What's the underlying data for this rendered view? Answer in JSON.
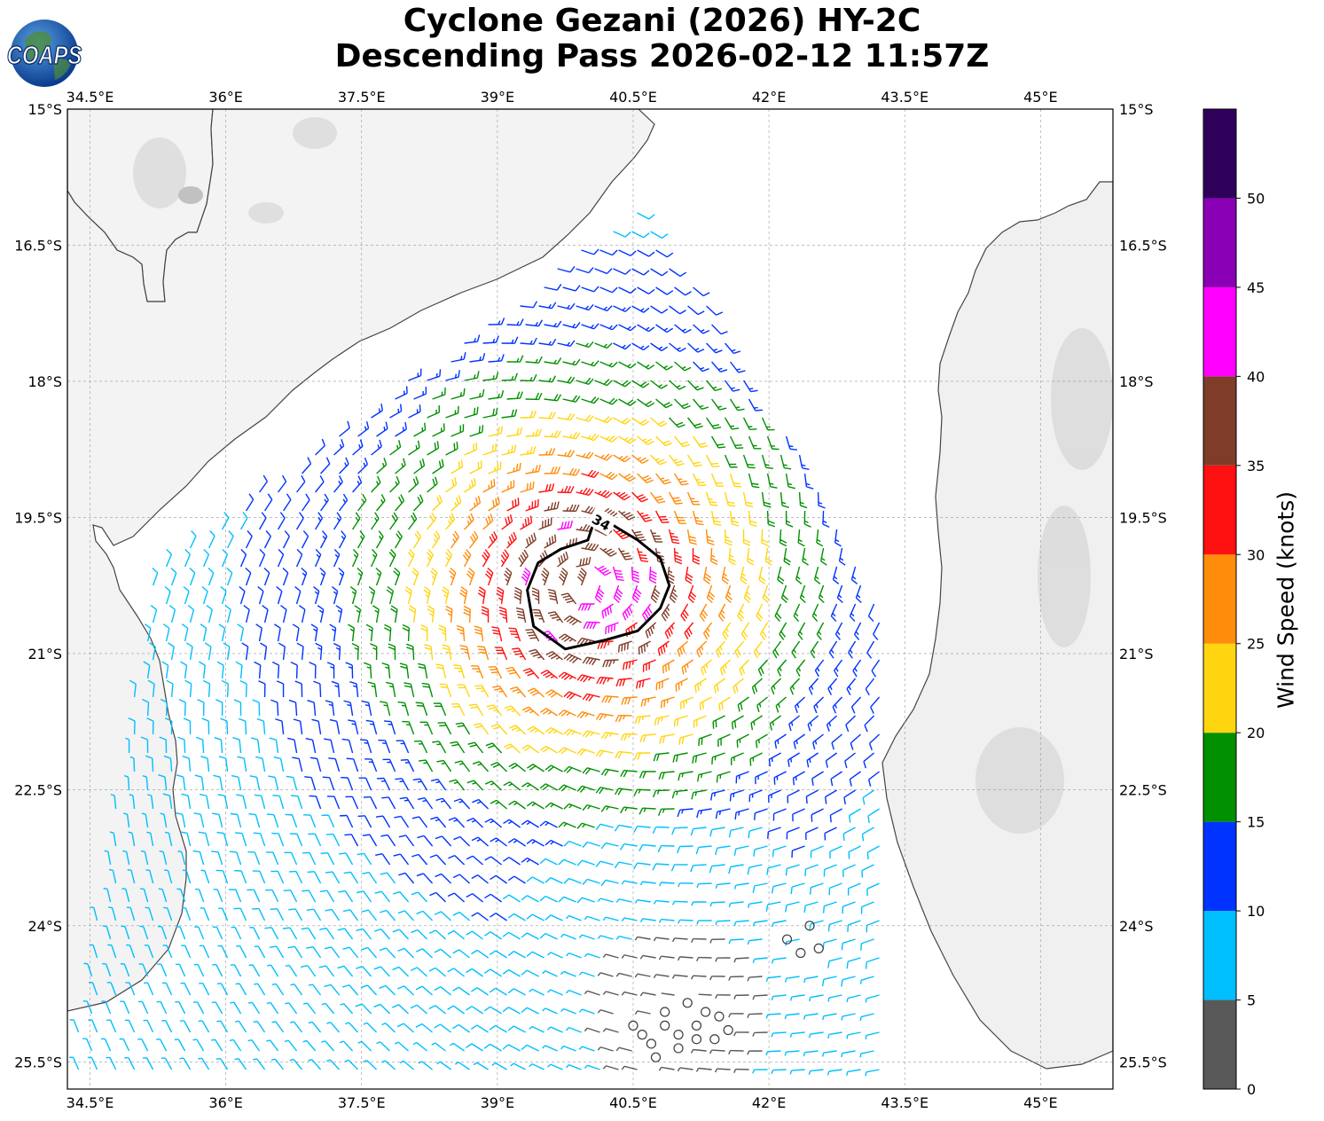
{
  "title": {
    "line1": "Cyclone Gezani (2026) HY-2C",
    "line2": "Descending Pass 2026-02-12 11:57Z"
  },
  "logo": {
    "text": "COAPS",
    "icon": "globe-icon"
  },
  "map": {
    "lon_range": [
      34.25,
      45.8
    ],
    "lat_range": [
      -25.8,
      -15
    ],
    "lon_ticks": [
      {
        "value": 34.5,
        "label": "34.5°E"
      },
      {
        "value": 36,
        "label": "36°E"
      },
      {
        "value": 37.5,
        "label": "37.5°E"
      },
      {
        "value": 39,
        "label": "39°E"
      },
      {
        "value": 40.5,
        "label": "40.5°E"
      },
      {
        "value": 42,
        "label": "42°E"
      },
      {
        "value": 43.5,
        "label": "43.5°E"
      },
      {
        "value": 45,
        "label": "45°E"
      }
    ],
    "lat_ticks": [
      {
        "value": -15,
        "label": "15°S"
      },
      {
        "value": -16.5,
        "label": "16.5°S"
      },
      {
        "value": -18,
        "label": "18°S"
      },
      {
        "value": -19.5,
        "label": "19.5°S"
      },
      {
        "value": -21,
        "label": "21°S"
      },
      {
        "value": -22.5,
        "label": "22.5°S"
      },
      {
        "value": -24,
        "label": "24°S"
      },
      {
        "value": -25.5,
        "label": "25.5°S"
      }
    ],
    "gridlines": true,
    "land_color": "#f4f4f4",
    "sea_color": "#ffffff",
    "coastline_color": "#444444",
    "cyclone_center": [
      40.0,
      -20.25
    ],
    "contour_34kt": {
      "label": "34",
      "points": [
        [
          40.1,
          -19.45
        ],
        [
          40.0,
          -19.75
        ],
        [
          39.7,
          -19.85
        ],
        [
          39.45,
          -20.0
        ],
        [
          39.33,
          -20.3
        ],
        [
          39.4,
          -20.7
        ],
        [
          39.75,
          -20.95
        ],
        [
          40.2,
          -20.85
        ],
        [
          40.55,
          -20.75
        ],
        [
          40.8,
          -20.5
        ],
        [
          40.9,
          -20.25
        ],
        [
          40.8,
          -19.95
        ],
        [
          40.55,
          -19.75
        ],
        [
          40.3,
          -19.6
        ]
      ]
    },
    "wind_barbs": {
      "units": "knots",
      "swath": {
        "description_points": [
          [
            40.6,
            -16.1
          ],
          [
            41.55,
            -17.5
          ],
          [
            42.65,
            -19.3
          ],
          [
            43.55,
            -21.2
          ],
          [
            43.5,
            -22.9
          ],
          [
            44.05,
            -24.3
          ],
          [
            44.3,
            -25.8
          ],
          [
            34.3,
            -25.8
          ],
          [
            34.3,
            -25.5
          ],
          [
            35.2,
            -20.1
          ],
          [
            37.2,
            -18.6
          ],
          [
            39.0,
            -17.25
          ],
          [
            40.2,
            -16.3
          ]
        ]
      },
      "calm_circles": [
        [
          40.5,
          -25.1
        ],
        [
          40.6,
          -25.2
        ],
        [
          40.7,
          -25.3
        ],
        [
          40.75,
          -25.45
        ],
        [
          40.85,
          -24.95
        ],
        [
          40.85,
          -25.1
        ],
        [
          41.0,
          -25.2
        ],
        [
          41.0,
          -25.35
        ],
        [
          41.1,
          -24.85
        ],
        [
          41.2,
          -25.1
        ],
        [
          41.2,
          -25.25
        ],
        [
          41.3,
          -24.95
        ],
        [
          41.4,
          -25.25
        ],
        [
          41.45,
          -25.0
        ],
        [
          41.55,
          -25.15
        ],
        [
          42.2,
          -24.15
        ],
        [
          42.35,
          -24.3
        ],
        [
          42.45,
          -24.0
        ],
        [
          42.55,
          -24.25
        ]
      ]
    }
  },
  "colorbar": {
    "label": "Wind Speed (knots)",
    "min": 0,
    "max": 55,
    "bins": [
      {
        "from": 0,
        "to": 5,
        "color": "#595959"
      },
      {
        "from": 5,
        "to": 10,
        "color": "#00bfff"
      },
      {
        "from": 10,
        "to": 15,
        "color": "#0033ff"
      },
      {
        "from": 15,
        "to": 20,
        "color": "#009000"
      },
      {
        "from": 20,
        "to": 25,
        "color": "#ffd510"
      },
      {
        "from": 25,
        "to": 30,
        "color": "#ff8c0a"
      },
      {
        "from": 30,
        "to": 35,
        "color": "#ff1010"
      },
      {
        "from": 35,
        "to": 40,
        "color": "#7f3c28"
      },
      {
        "from": 40,
        "to": 45,
        "color": "#ff00ff"
      },
      {
        "from": 45,
        "to": 50,
        "color": "#8a00b4"
      },
      {
        "from": 50,
        "to": 55,
        "color": "#2f005a"
      }
    ],
    "tick_labels": [
      {
        "value": 0,
        "label": "0"
      },
      {
        "value": 5,
        "label": "5"
      },
      {
        "value": 10,
        "label": "10"
      },
      {
        "value": 15,
        "label": "15"
      },
      {
        "value": 20,
        "label": "20"
      },
      {
        "value": 25,
        "label": "25"
      },
      {
        "value": 30,
        "label": "30"
      },
      {
        "value": 35,
        "label": "35"
      },
      {
        "value": 40,
        "label": "40"
      },
      {
        "value": 45,
        "label": "45"
      },
      {
        "value": 50,
        "label": "50"
      }
    ]
  }
}
